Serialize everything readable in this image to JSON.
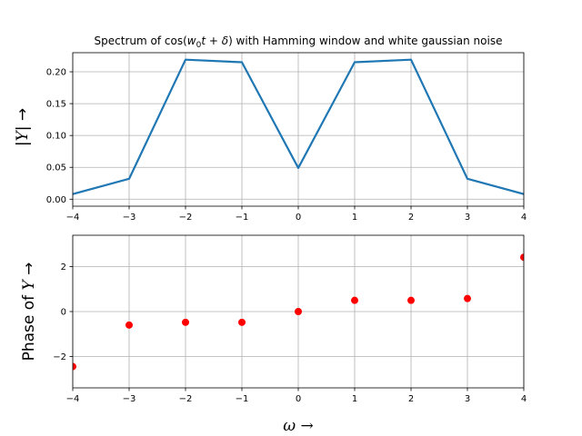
{
  "chart_data": [
    {
      "type": "line",
      "title": "Spectrum of cos(w₀t + δ) with Hamming window and white gaussian noise",
      "xlabel": "",
      "ylabel": "|Y| →",
      "x": [
        -4,
        -3,
        -2,
        -1,
        0,
        1,
        2,
        3,
        4
      ],
      "series": [
        {
          "values": [
            0.008,
            0.032,
            0.219,
            0.215,
            0.049,
            0.215,
            0.219,
            0.032,
            0.008
          ],
          "color": "#1f77b4"
        }
      ],
      "xlim": [
        -4,
        4
      ],
      "ylim": [
        -0.011,
        0.23
      ],
      "xticks": [
        -4,
        -3,
        -2,
        -1,
        0,
        1,
        2,
        3,
        4
      ],
      "xtick_labels": [
        "−4",
        "−3",
        "−2",
        "−1",
        "0",
        "1",
        "2",
        "3",
        "4"
      ],
      "yticks": [
        0.0,
        0.05,
        0.1,
        0.15,
        0.2
      ],
      "ytick_labels": [
        "0.00",
        "0.05",
        "0.10",
        "0.15",
        "0.20"
      ],
      "grid": true
    },
    {
      "type": "scatter",
      "title": "",
      "xlabel": "ω →",
      "ylabel": "Phase of Y →",
      "x": [
        -4,
        -3,
        -2,
        -1,
        0,
        1,
        2,
        3,
        4
      ],
      "series": [
        {
          "values": [
            -2.45,
            -0.6,
            -0.48,
            -0.48,
            0.0,
            0.5,
            0.5,
            0.58,
            2.42
          ],
          "color": "#ff0000"
        }
      ],
      "xlim": [
        -4,
        4
      ],
      "ylim": [
        -3.4,
        3.4
      ],
      "xticks": [
        -4,
        -3,
        -2,
        -1,
        0,
        1,
        2,
        3,
        4
      ],
      "xtick_labels": [
        "−4",
        "−3",
        "−2",
        "−1",
        "0",
        "1",
        "2",
        "3",
        "4"
      ],
      "yticks": [
        -2,
        0,
        2
      ],
      "ytick_labels": [
        "−2",
        "0",
        "2"
      ],
      "grid": true
    }
  ]
}
